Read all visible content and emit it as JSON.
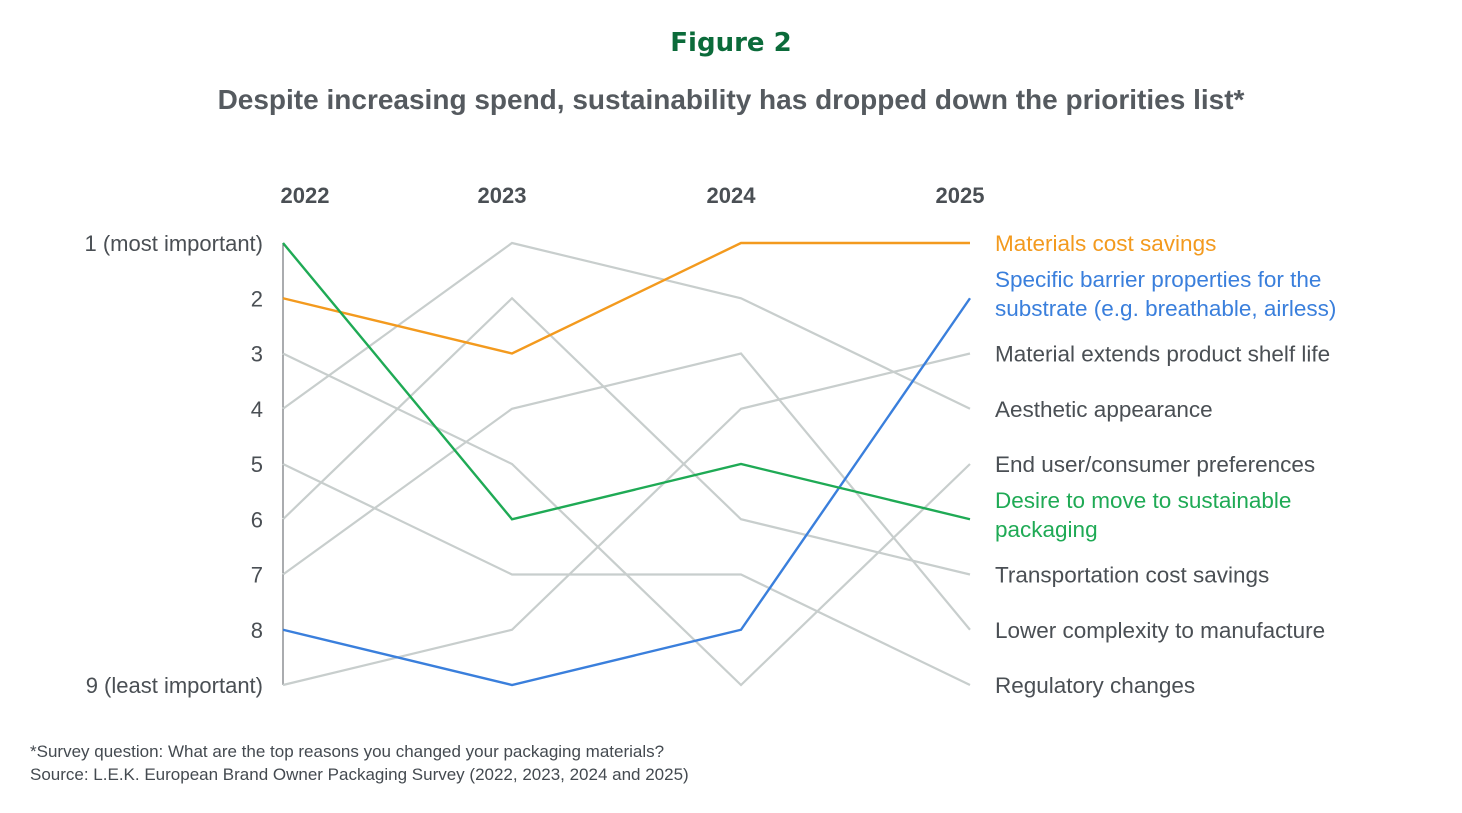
{
  "figure_label": "Figure 2",
  "subtitle": "Despite increasing spend, sustainability has dropped down the priorities list*",
  "footnotes": {
    "question": "*Survey question: What are the top reasons you changed your packaging materials?",
    "source": "Source: L.E.K. European Brand Owner Packaging Survey (2022, 2023, 2024 and 2025)"
  },
  "chart_data": {
    "type": "line",
    "x": [
      "2022",
      "2023",
      "2024",
      "2025"
    ],
    "y_tick_labels": [
      "1 (most important)",
      "2",
      "3",
      "4",
      "5",
      "6",
      "7",
      "8",
      "9 (least important)"
    ],
    "ylim": [
      1,
      9
    ],
    "y_inverted": true,
    "grid": false,
    "legend_placement": "right, labels at line ends",
    "series": [
      {
        "name": "Materials cost savings",
        "values": [
          2,
          3,
          1,
          1
        ],
        "color": "#f39a1e",
        "highlight": true
      },
      {
        "name": "Specific barrier properties for the substrate (e.g. breathable, airless)",
        "values": [
          8,
          9,
          8,
          2
        ],
        "color": "#3a7fdc",
        "highlight": true
      },
      {
        "name": "Material extends product shelf life",
        "values": [
          9,
          8,
          4,
          3
        ],
        "color": "#c8cecd",
        "highlight": false
      },
      {
        "name": "Aesthetic appearance",
        "values": [
          4,
          1,
          2,
          4
        ],
        "color": "#c8cecd",
        "highlight": false
      },
      {
        "name": "End user/consumer preferences",
        "values": [
          3,
          5,
          9,
          5
        ],
        "color": "#c8cecd",
        "highlight": false
      },
      {
        "name": "Desire to move to sustainable packaging",
        "values": [
          1,
          6,
          5,
          6
        ],
        "color": "#1faa55",
        "highlight": true
      },
      {
        "name": "Transportation cost savings",
        "values": [
          6,
          2,
          6,
          7
        ],
        "color": "#c8cecd",
        "highlight": false
      },
      {
        "name": "Lower complexity to manufacture",
        "values": [
          7,
          4,
          3,
          8
        ],
        "color": "#c8cecd",
        "highlight": false
      },
      {
        "name": "Regulatory changes",
        "values": [
          5,
          7,
          7,
          9
        ],
        "color": "#c8cecd",
        "highlight": false
      }
    ]
  }
}
